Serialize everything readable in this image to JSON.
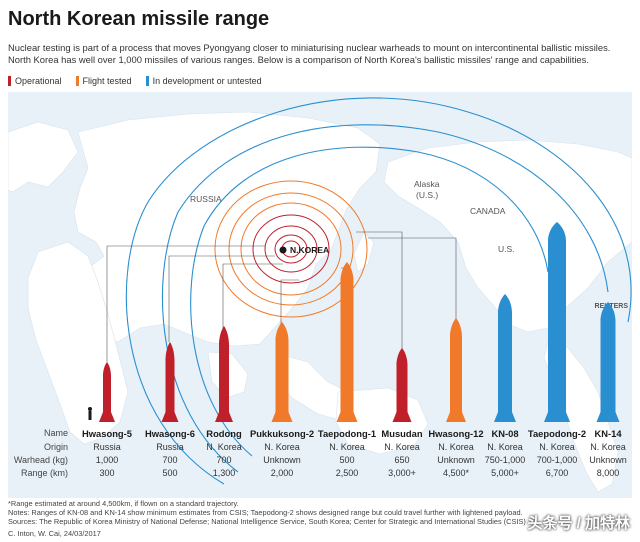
{
  "title": "North Korean missile range",
  "intro": {
    "line1": "Nuclear testing is part of a process that moves Pyongyang closer to miniaturising nuclear warheads to mount on intercontinental ballistic missiles.",
    "line2": "North Korea has well over 1,000 missiles of various ranges. Below is a comparison of North Korea's ballistic missiles' range and capabilities."
  },
  "legend": [
    {
      "label": "Operational",
      "color": "#c0202a"
    },
    {
      "label": "Flight tested",
      "color": "#f07a2a"
    },
    {
      "label": "In development or untested",
      "color": "#2a8fd0"
    }
  ],
  "map_labels": {
    "russia": "RUSSIA",
    "alaska": "Alaska",
    "alaska_sub": "(U.S.)",
    "canada": "CANADA",
    "us": "U.S.",
    "nkorea": "N.KOREA"
  },
  "row_labels": {
    "name": "Name",
    "origin": "Origin",
    "warhead": "Warhead (kg)",
    "range": "Range (km)"
  },
  "missiles": [
    {
      "name": "Hwasong-5",
      "origin": "Russia",
      "warhead": "1,000",
      "range": "300",
      "status": "operational"
    },
    {
      "name": "Hwasong-6",
      "origin": "Russia",
      "warhead": "700",
      "range": "500",
      "status": "operational"
    },
    {
      "name": "Rodong",
      "origin": "N. Korea",
      "warhead": "700",
      "range": "1,300",
      "status": "operational"
    },
    {
      "name": "Pukkuksong-2",
      "origin": "N. Korea",
      "warhead": "Unknown",
      "range": "2,000",
      "status": "flight-tested"
    },
    {
      "name": "Taepodong-1",
      "origin": "N. Korea",
      "warhead": "500",
      "range": "2,500",
      "status": "flight-tested"
    },
    {
      "name": "Musudan",
      "origin": "N. Korea",
      "warhead": "650",
      "range": "3,000+",
      "status": "operational"
    },
    {
      "name": "Hwasong-12",
      "origin": "N. Korea",
      "warhead": "Unknown",
      "range": "4,500*",
      "status": "flight-tested"
    },
    {
      "name": "KN-08",
      "origin": "N. Korea",
      "warhead": "750-1,000",
      "range": "5,000+",
      "status": "in-development"
    },
    {
      "name": "Taepodong-2",
      "origin": "N. Korea",
      "warhead": "700-1,000",
      "range": "6,700",
      "status": "in-development"
    },
    {
      "name": "KN-14",
      "origin": "N. Korea",
      "warhead": "Unknown",
      "range": "8,000",
      "status": "in-development"
    }
  ],
  "notes": {
    "line1": "*Range estimated at around 4,500km, if flown on a standard trajectory.",
    "line2": "Notes: Ranges of KN-08 and KN-14 show minimum estimates from CSIS; Taepodong-2 shows designed range but could travel further with lightened payload.",
    "line3": "Sources: The Republic of Korea Ministry of National Defense; National Intelligence Service, South Korea; Center for Strategic and International Studies (CSIS)"
  },
  "credit": "C. Inton,  W. Cai, 24/03/2017",
  "reuters": "REUTERS",
  "watermark": "头条号 / 加特林"
}
